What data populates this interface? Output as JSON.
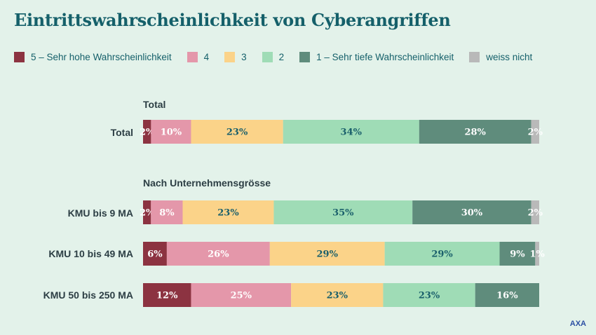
{
  "chart_data": {
    "type": "stacked-bar-horizontal",
    "title": "Eintrittswahrscheinlichkeit von Cyberangriffen",
    "legend": [
      {
        "name": "5 – Sehr hohe Wahrscheinlichkeit",
        "color": "#8c3341"
      },
      {
        "name": "4",
        "color": "#e497aa"
      },
      {
        "name": "3",
        "color": "#fbd389"
      },
      {
        "name": "2",
        "color": "#9fdcb6"
      },
      {
        "name": "1 – Sehr tiefe Wahrscheinlichkeit",
        "color": "#5f8c7c"
      },
      {
        "name": "weiss nicht",
        "color": "#b9b9b9"
      }
    ],
    "label_colors": [
      "#ffffff",
      "#ffffff",
      "#1a5f6b",
      "#1a5f6b",
      "#ffffff",
      "#ffffff"
    ],
    "sections": {
      "total": "Total",
      "by_size": "Nach Unternehmensgrösse"
    },
    "rows": [
      {
        "label": "Total",
        "values": [
          2,
          10,
          23,
          34,
          28,
          2
        ]
      },
      {
        "label": "KMU bis 9 MA",
        "values": [
          2,
          8,
          23,
          35,
          30,
          2
        ]
      },
      {
        "label": "KMU 10 bis 49 MA",
        "values": [
          6,
          26,
          29,
          29,
          9,
          1
        ]
      },
      {
        "label": "KMU 50 bis 250 MA",
        "values": [
          12,
          25,
          23,
          23,
          16,
          0
        ]
      }
    ],
    "value_suffix": "%",
    "source": "AXA"
  }
}
